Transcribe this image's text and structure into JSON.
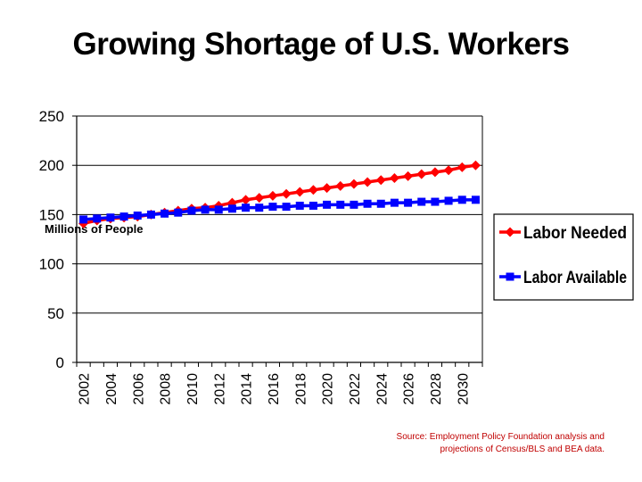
{
  "title": "Growing Shortage of U.S. Workers",
  "source": {
    "line1": "Source:  Employment Policy Foundation analysis and",
    "line2": "projections of Census/BLS and BEA data."
  },
  "chart_data": {
    "type": "line",
    "title": "Growing Shortage of U.S. Workers",
    "ylabel": "Millions of People",
    "xlabel": "",
    "ylim": [
      0,
      250
    ],
    "yticks": [
      0,
      50,
      100,
      150,
      200,
      250
    ],
    "x": [
      2002,
      2003,
      2004,
      2005,
      2006,
      2007,
      2008,
      2009,
      2010,
      2011,
      2012,
      2013,
      2014,
      2015,
      2016,
      2017,
      2018,
      2019,
      2020,
      2021,
      2022,
      2023,
      2024,
      2025,
      2026,
      2027,
      2028,
      2029,
      2030,
      2031
    ],
    "xtick_labels": [
      "2002",
      "2004",
      "2006",
      "2008",
      "2010",
      "2012",
      "2014",
      "2016",
      "2018",
      "2020",
      "2022",
      "2024",
      "2026",
      "2028",
      "2030"
    ],
    "grid": "horizontal",
    "legend": "right",
    "series": [
      {
        "name": "Labor Needed",
        "color": "#ff0000",
        "marker": "diamond",
        "values": [
          141,
          144,
          146,
          147,
          148,
          150,
          152,
          154,
          156,
          157,
          159,
          162,
          165,
          167,
          169,
          171,
          173,
          175,
          177,
          179,
          181,
          183,
          185,
          187,
          189,
          191,
          193,
          195,
          198,
          200
        ]
      },
      {
        "name": "Labor Available",
        "color": "#0000ff",
        "marker": "square",
        "values": [
          145,
          146,
          147,
          148,
          149,
          150,
          151,
          152,
          154,
          155,
          155,
          156,
          157,
          157,
          158,
          158,
          159,
          159,
          160,
          160,
          160,
          161,
          161,
          162,
          162,
          163,
          163,
          164,
          165,
          165
        ]
      }
    ]
  }
}
